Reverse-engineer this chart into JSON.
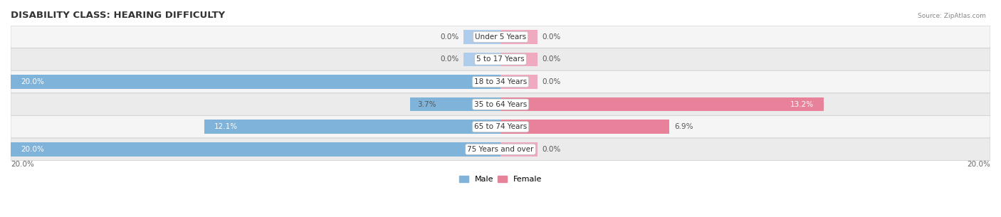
{
  "title": "DISABILITY CLASS: HEARING DIFFICULTY",
  "source": "Source: ZipAtlas.com",
  "categories": [
    "Under 5 Years",
    "5 to 17 Years",
    "18 to 34 Years",
    "35 to 64 Years",
    "65 to 74 Years",
    "75 Years and over"
  ],
  "male_values": [
    0.0,
    0.0,
    20.0,
    3.7,
    12.1,
    20.0
  ],
  "female_values": [
    0.0,
    0.0,
    0.0,
    13.2,
    6.9,
    0.0
  ],
  "male_color": "#7fb3d9",
  "female_color": "#e8829a",
  "male_stub_color": "#aeccec",
  "female_stub_color": "#f0aabf",
  "axis_limit": 20.0,
  "bar_height": 0.62,
  "row_bg_even": "#f0f0f0",
  "row_bg_odd": "#e8e8e8",
  "title_fontsize": 9.5,
  "label_fontsize": 7.5,
  "value_fontsize": 7.5,
  "legend_fontsize": 8.0,
  "stub_size": 1.5
}
